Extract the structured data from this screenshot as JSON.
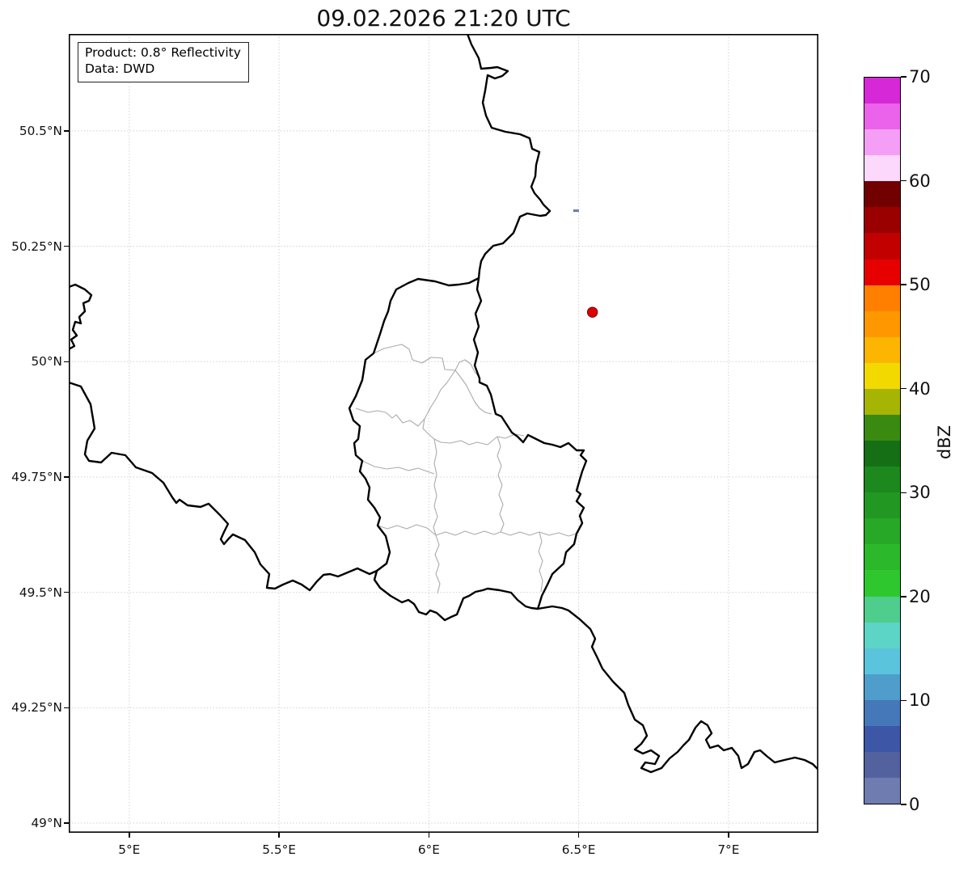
{
  "title": "09.02.2026 21:20 UTC",
  "info_box": {
    "line1": "Product: 0.8° Reflectivity",
    "line2": "Data: DWD"
  },
  "axes": {
    "lon_range": [
      4.798,
      7.3
    ],
    "lat_range": [
      48.979,
      50.71
    ],
    "lon_ticks": [
      {
        "label": "5°E",
        "value": 5.0
      },
      {
        "label": "5.5°E",
        "value": 5.5
      },
      {
        "label": "6°E",
        "value": 6.0
      },
      {
        "label": "6.5°E",
        "value": 6.5
      },
      {
        "label": "7°E",
        "value": 7.0
      }
    ],
    "lat_ticks": [
      {
        "label": "50.5°N",
        "value": 50.5
      },
      {
        "label": "50.25°N",
        "value": 50.25
      },
      {
        "label": "50°N",
        "value": 50.0
      },
      {
        "label": "49.75°N",
        "value": 49.75
      },
      {
        "label": "49.5°N",
        "value": 49.5
      },
      {
        "label": "49.25°N",
        "value": 49.25
      },
      {
        "label": "49°N",
        "value": 49.0
      }
    ],
    "grid_color": "#c7c7c7"
  },
  "colorbar": {
    "label": "dBZ",
    "min": 0,
    "max": 70,
    "step": 2.5,
    "ticks": [
      0,
      10,
      20,
      30,
      40,
      50,
      60,
      70
    ],
    "colors_bottom_to_top": [
      "#6e7cb0",
      "#53629f",
      "#3e56a6",
      "#4578b8",
      "#4e9dcb",
      "#5ac4dd",
      "#5cd4c6",
      "#4ecd8d",
      "#2ec82e",
      "#2bb82b",
      "#27a827",
      "#229822",
      "#1d881d",
      "#157015",
      "#3a8a12",
      "#a6b404",
      "#f2d900",
      "#fcb500",
      "#ff9800",
      "#ff7f00",
      "#e60000",
      "#c20000",
      "#9b0000",
      "#710000",
      "#fcd9fc",
      "#f59ef5",
      "#eb63eb",
      "#d728d7"
    ]
  },
  "markers": {
    "radar_site": {
      "lon": 6.546,
      "lat": 50.107,
      "color": "#dd0000",
      "edge": "#7a0000"
    },
    "echo": {
      "lon": 6.49,
      "lat": 50.327,
      "color": "#6b79ae"
    }
  },
  "map": {
    "border_color": "#000000",
    "district_color": "#ababab",
    "country_borders": [
      "M493,0 L498,13 507,30 510,43 522,42 530,41 543,46 536,52 527,55 518,51 515,70 512,85 516,101 523,116 540,121 558,124 570,129 573,142 582,146 578,162 577,176 572,189 576,197 583,205 587,211 592,216 595,219 590,224 583,225 567,222 558,226 550,246 544,252 537,259 525,262 515,272 510,281 508,292 507,302",
      "M507,302 L505,316 510,330 503,346 507,362 501,378 506,394 502,410 508,426 508,431 517,435 522,446 528,470 535,473 548,493 555,498 562,505 568,496 578,501 588,506 598,508 608,511 618,506 628,515 637,515 633,521 640,528 635,541 632,551 628,565 633,569 628,578 637,586 632,596 635,605 628,618 625,631 615,641 612,655 598,668 592,681 585,695 582,705 580,711",
      "M507,302 L495,308 482,310 470,311 453,306 432,303 420,308 405,316 398,330 395,343 390,355 385,371 377,395 367,403 363,428 355,448 347,463 352,478 360,485 358,501 353,506 355,521 363,528 360,541 367,550 372,561 370,576 378,586 385,598 382,608 392,621 397,641 393,655 381,664 378,675 385,685 398,695 412,703 420,700 427,705 433,715 442,718 447,713 455,716 465,725 473,721 480,718 488,698 495,695 503,690 512,688 518,686 533,688 547,691 555,700 565,708 572,710 580,711",
      "M381,664 L372,668 357,661 345,666 333,671 323,668 315,669 307,677 298,688 288,681 277,676 265,681 255,686 245,685 248,668 237,656 230,641 218,626 203,619 198,624 192,631 188,625 192,616 197,606 187,595 173,581 163,585 147,583 137,576 133,580 128,573 117,555 103,543 83,536 70,521 53,518 40,530 25,528 20,520 23,503 32,488 27,458 15,436 0,431",
      "M0,313 L8,310 20,316 28,323 25,330 18,333 20,343 13,350 15,358 8,356 5,366 10,373 3,378 7,386 0,390",
      "M580,711 L598,708 610,710 618,713 632,724 645,736 651,748 647,758 653,770 660,785 673,801 687,815 692,830 700,848 710,855 715,868 708,878 700,885 710,890 720,886 730,893 725,903 713,901 708,908 720,913 733,908 743,896 753,888 760,880 767,873 775,858 782,850 790,855 795,865 788,873 793,883 803,880 810,886 820,883 828,893 832,908 840,903 848,888 855,886 863,893 873,901 885,898 898,895 910,898 920,903 927,910"
    ],
    "district_borders": [
      "M377,395 L390,389 403,386 412,384 421,390 425,403 437,407 448,400 462,401 465,415 478,416",
      "M478,416 L468,431 460,440 455,450 448,461 440,476",
      "M355,463 L370,468 382,466 392,468 400,475 405,471 413,481 422,478 432,485 440,476",
      "M478,416 L485,425 492,435 497,445 502,455 508,463 515,468 523,470",
      "M478,416 L483,406 490,403 497,408 502,418 508,425",
      "M440,476 L438,488 445,495 452,501 460,505 472,506 485,503 495,508 505,505 518,508 530,498 540,500 552,495 563,497",
      "M363,528 L378,535 393,538 408,536 420,540 432,537 443,541 452,544",
      "M452,501 L455,518 452,531 455,545 452,558 455,571 452,584 456,597 451,610 454,620",
      "M530,498 L534,510 530,522 535,534 531,546 536,558 532,570 537,582 533,594 538,606 534,616",
      "M382,608 L394,612 406,608 418,612 430,607 443,611 454,620 466,616 478,620 490,615 502,619 514,615 526,619 534,616 546,620 558,616 570,620 582,616 594,620 606,617 618,621 628,618",
      "M454,620 L458,632 453,644 458,656 454,668 459,680 456,692",
      "M582,616 L585,628 581,640 586,652 582,664 586,676 584,690"
    ]
  }
}
